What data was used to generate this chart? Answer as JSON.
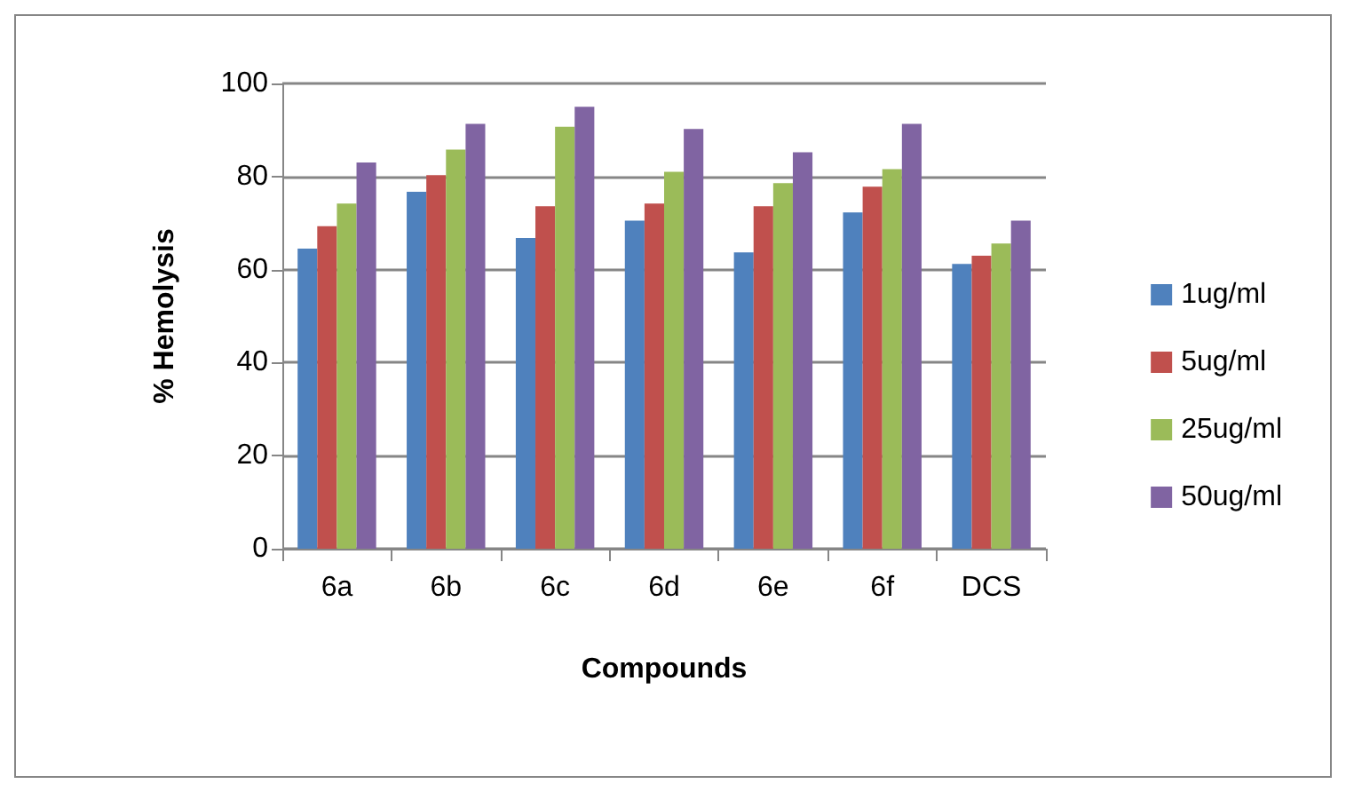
{
  "chart_data": {
    "type": "bar",
    "xlabel": "Compounds",
    "ylabel": "% Hemolysis",
    "categories": [
      "6a",
      "6b",
      "6c",
      "6d",
      "6e",
      "6f",
      "DCS"
    ],
    "series": [
      {
        "name": "1ug/ml",
        "color": "#4f81bd",
        "values": [
          64.5,
          76.7,
          66.8,
          70.5,
          63.7,
          72.3,
          61.2
        ]
      },
      {
        "name": "5ug/ml",
        "color": "#c0504d",
        "values": [
          69.3,
          80.3,
          73.6,
          74.2,
          73.6,
          77.8,
          63.0
        ]
      },
      {
        "name": "25ug/ml",
        "color": "#9bbb59",
        "values": [
          74.2,
          85.8,
          90.7,
          81.0,
          78.6,
          81.6,
          65.6
        ]
      },
      {
        "name": "50ug/ml",
        "color": "#8064a2",
        "values": [
          83.0,
          91.3,
          95.0,
          90.2,
          85.2,
          91.3,
          70.5
        ]
      }
    ],
    "ylim": [
      0,
      100
    ],
    "yticks": [
      0,
      20,
      40,
      60,
      80,
      100
    ],
    "grid": "y",
    "legend": "right"
  }
}
